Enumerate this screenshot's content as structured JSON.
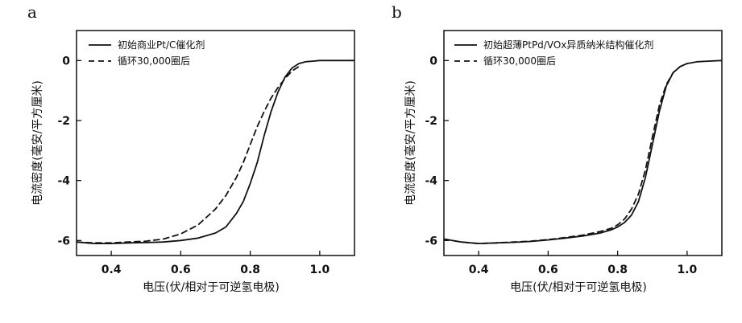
{
  "chart_data": [
    {
      "type": "line",
      "panel_label": "a",
      "xlabel": "电压(伏/相对于可逆氢电极)",
      "ylabel": "电流密度(毫安/平方厘米)",
      "xlim": [
        0.3,
        1.1
      ],
      "ylim": [
        -6.5,
        1.0
      ],
      "x_ticks": [
        0.4,
        0.6,
        0.8,
        1.0
      ],
      "x_tick_labels": [
        "0.4",
        "0.6",
        "0.8",
        "1.0"
      ],
      "y_ticks": [
        0,
        -2,
        -4,
        -6
      ],
      "y_tick_labels": [
        "0",
        "-2",
        "-4",
        "-6"
      ],
      "grid": false,
      "legend_position": "top-left",
      "series": [
        {
          "name": "初始商业Pt/C催化剂",
          "style": "solid",
          "color": "#111111",
          "x": [
            0.3,
            0.35,
            0.4,
            0.45,
            0.5,
            0.55,
            0.6,
            0.65,
            0.7,
            0.73,
            0.76,
            0.78,
            0.8,
            0.82,
            0.84,
            0.86,
            0.88,
            0.9,
            0.92,
            0.94,
            0.96,
            0.98,
            1.0,
            1.05,
            1.1
          ],
          "y": [
            -6.05,
            -6.1,
            -6.1,
            -6.08,
            -6.07,
            -6.05,
            -6.0,
            -5.92,
            -5.75,
            -5.55,
            -5.1,
            -4.7,
            -4.1,
            -3.4,
            -2.5,
            -1.7,
            -1.05,
            -0.55,
            -0.25,
            -0.1,
            -0.04,
            -0.02,
            0.0,
            0.0,
            0.0
          ]
        },
        {
          "name": "循环30,000圈后",
          "style": "dashed",
          "color": "#111111",
          "x": [
            0.3,
            0.35,
            0.4,
            0.45,
            0.5,
            0.55,
            0.6,
            0.65,
            0.7,
            0.73,
            0.76,
            0.78,
            0.8,
            0.82,
            0.84,
            0.86,
            0.88,
            0.9,
            0.92,
            0.94
          ],
          "y": [
            -6.05,
            -6.08,
            -6.08,
            -6.05,
            -6.02,
            -5.95,
            -5.78,
            -5.48,
            -4.95,
            -4.5,
            -3.9,
            -3.4,
            -2.8,
            -2.2,
            -1.7,
            -1.25,
            -0.9,
            -0.6,
            -0.35,
            -0.2
          ]
        }
      ]
    },
    {
      "type": "line",
      "panel_label": "b",
      "xlabel": "电压(伏/相对于可逆氢电极)",
      "ylabel": "电流密度(毫安/平方厘米)",
      "xlim": [
        0.3,
        1.1
      ],
      "ylim": [
        -6.5,
        1.0
      ],
      "x_ticks": [
        0.4,
        0.6,
        0.8,
        1.0
      ],
      "x_tick_labels": [
        "0.4",
        "0.6",
        "0.8",
        "1.0"
      ],
      "y_ticks": [
        0,
        -2,
        -4,
        -6
      ],
      "y_tick_labels": [
        "0",
        "-2",
        "-4",
        "-6"
      ],
      "grid": false,
      "legend_position": "top-left",
      "series": [
        {
          "name": "初始超薄PtPd/VOx异质纳米结构催化剂",
          "style": "solid",
          "color": "#111111",
          "x": [
            0.3,
            0.35,
            0.4,
            0.45,
            0.5,
            0.55,
            0.6,
            0.65,
            0.7,
            0.75,
            0.78,
            0.8,
            0.82,
            0.84,
            0.86,
            0.88,
            0.9,
            0.92,
            0.94,
            0.96,
            0.98,
            1.0,
            1.03,
            1.06,
            1.1
          ],
          "y": [
            -5.95,
            -6.05,
            -6.1,
            -6.08,
            -6.06,
            -6.03,
            -5.98,
            -5.92,
            -5.85,
            -5.75,
            -5.65,
            -5.55,
            -5.4,
            -5.15,
            -4.7,
            -3.9,
            -2.8,
            -1.7,
            -0.85,
            -0.4,
            -0.2,
            -0.1,
            -0.04,
            -0.02,
            0.0
          ]
        },
        {
          "name": "循环30,000圈后",
          "style": "dashed",
          "color": "#111111",
          "x": [
            0.3,
            0.35,
            0.4,
            0.45,
            0.5,
            0.55,
            0.6,
            0.65,
            0.7,
            0.75,
            0.78,
            0.8,
            0.82,
            0.84,
            0.86,
            0.88,
            0.9,
            0.92,
            0.94,
            0.96,
            0.98,
            1.0
          ],
          "y": [
            -5.95,
            -6.05,
            -6.1,
            -6.08,
            -6.05,
            -6.02,
            -5.97,
            -5.9,
            -5.82,
            -5.7,
            -5.6,
            -5.48,
            -5.28,
            -4.95,
            -4.45,
            -3.65,
            -2.55,
            -1.5,
            -0.8,
            -0.4,
            -0.2,
            -0.1
          ]
        }
      ]
    }
  ]
}
